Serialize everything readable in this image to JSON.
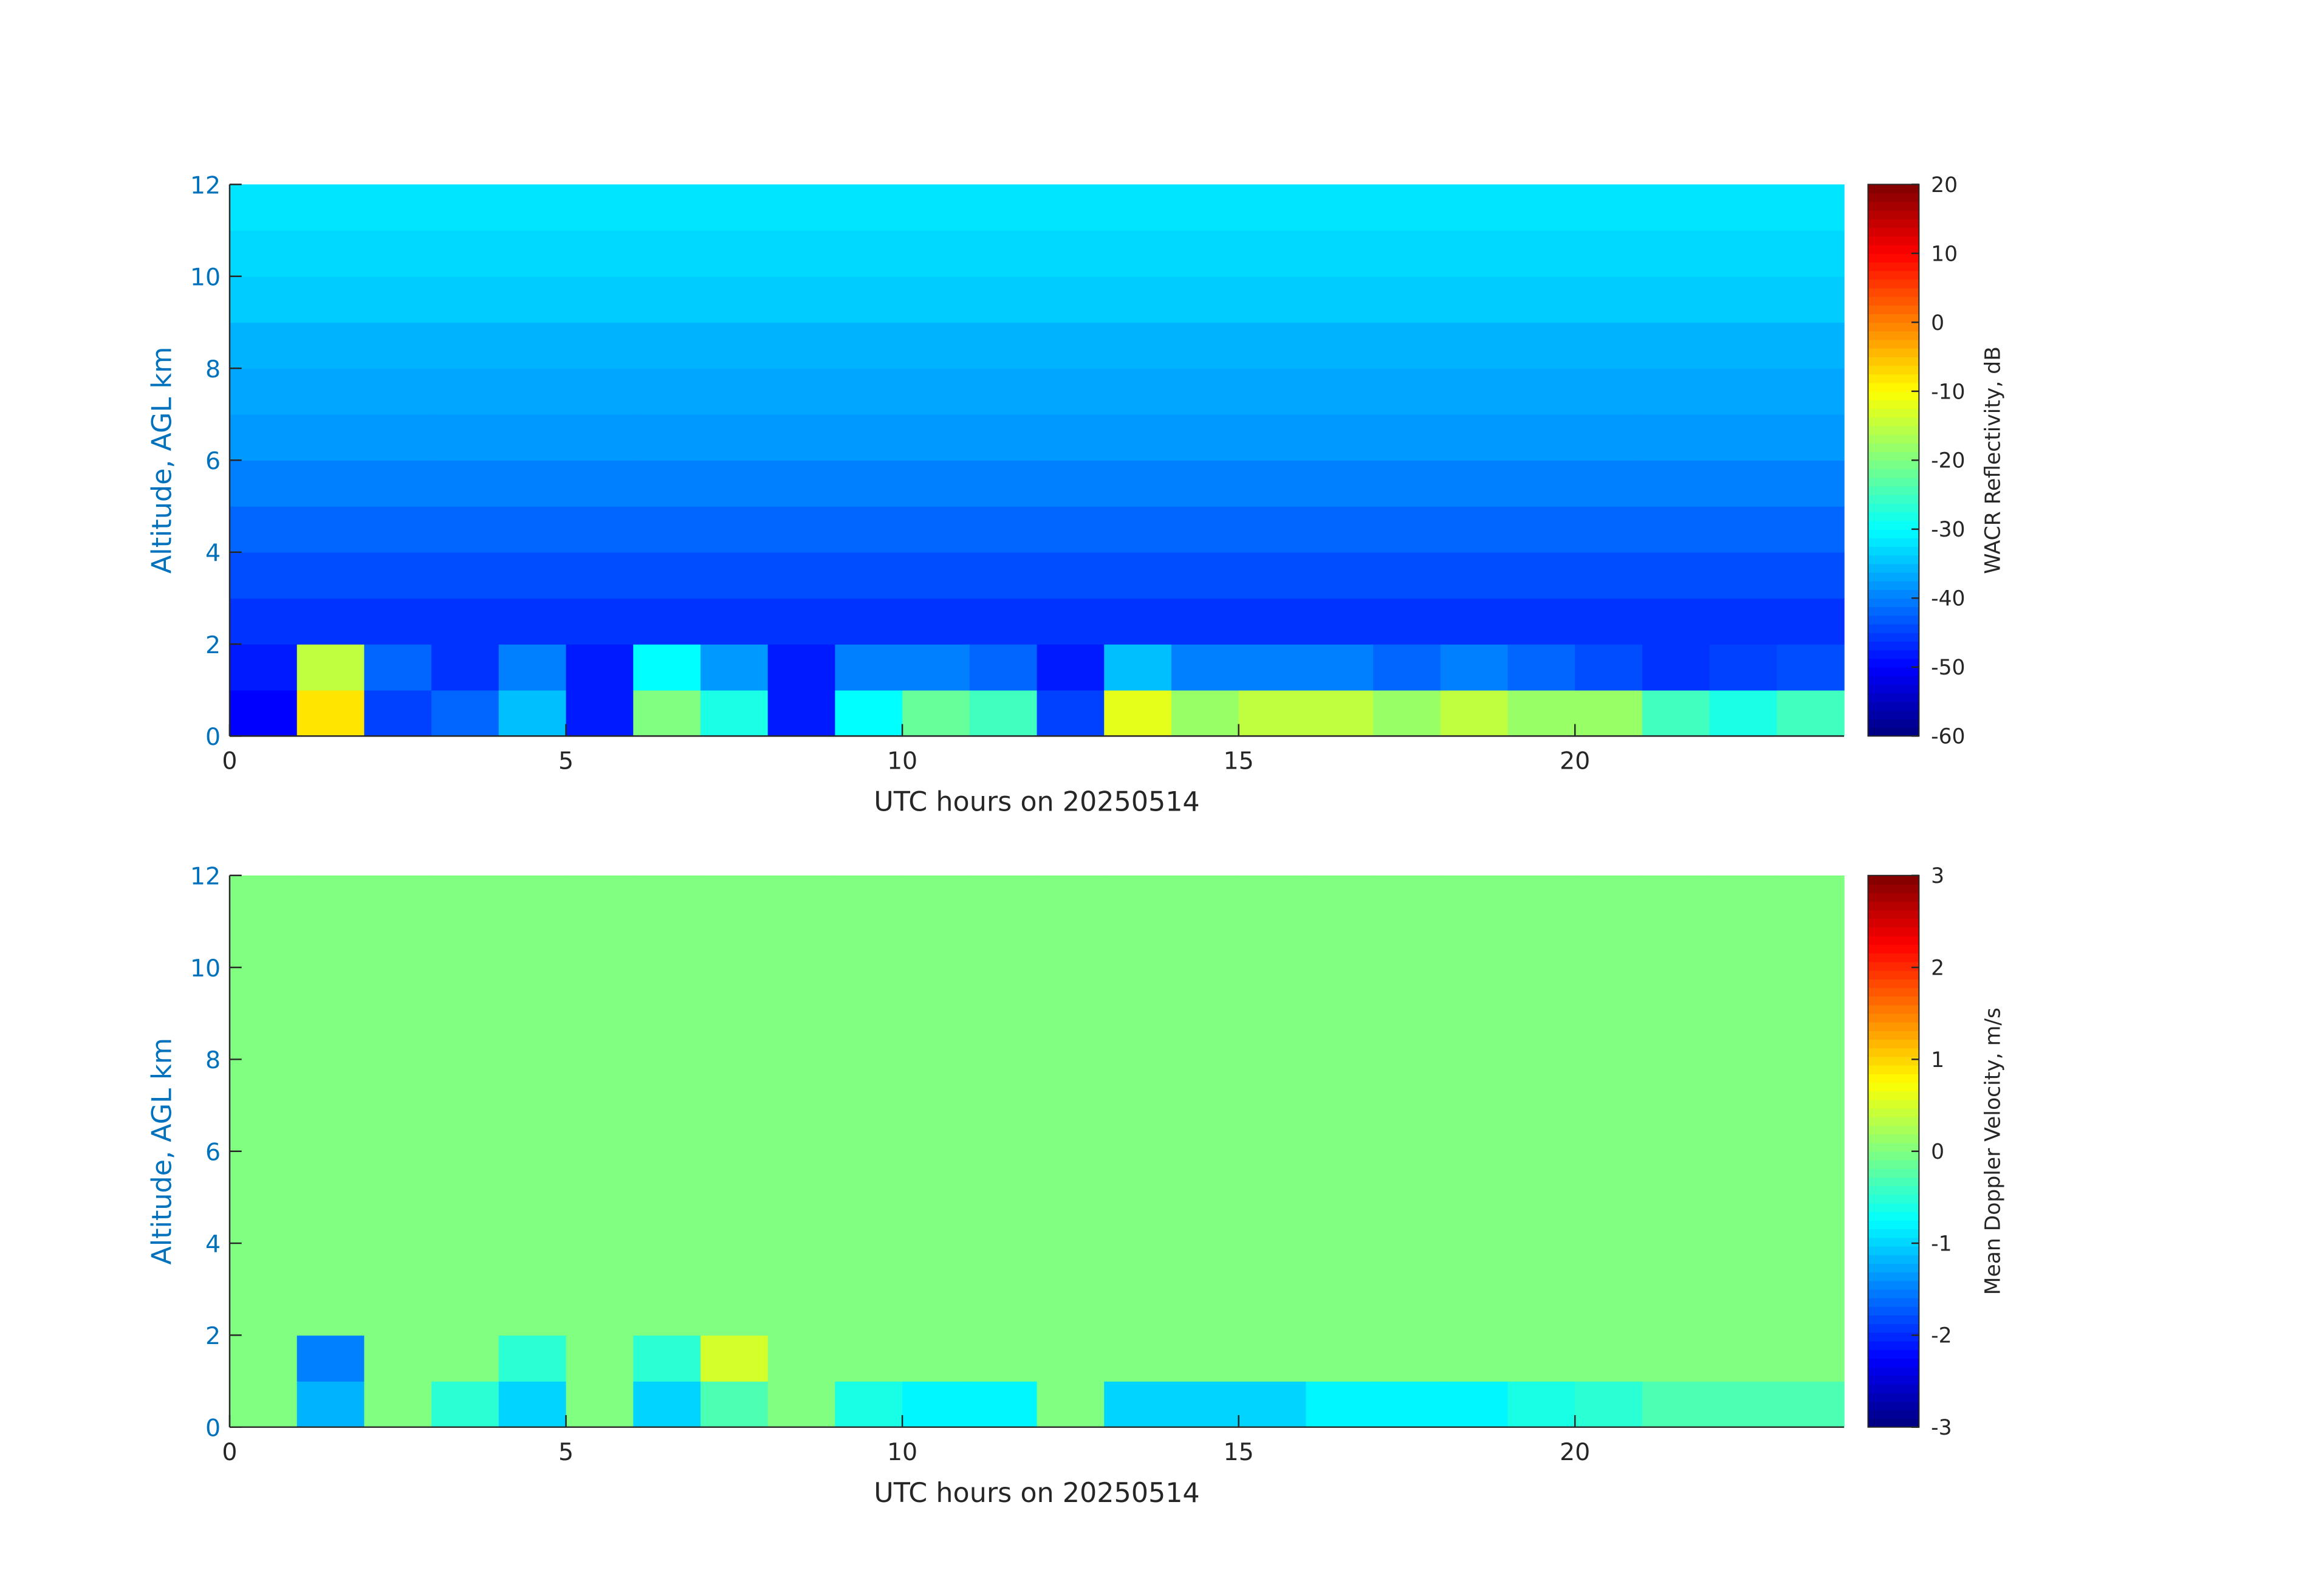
{
  "chart_data": [
    {
      "type": "heatmap",
      "colormap": "jet",
      "x_edges": [
        0,
        1,
        2,
        3,
        4,
        5,
        6,
        7,
        8,
        9,
        10,
        11,
        12,
        13,
        14,
        15,
        16,
        17,
        18,
        19,
        20,
        21,
        22,
        23,
        24
      ],
      "y_edges": [
        0,
        1,
        2,
        3,
        4,
        5,
        6,
        7,
        8,
        9,
        10,
        11,
        12
      ],
      "values": [
        [
          -50,
          -8,
          -45,
          -42,
          -35,
          -48,
          -20,
          -28,
          -48,
          -30,
          -22,
          -25,
          -45,
          -12,
          -18,
          -15,
          -15,
          -18,
          -15,
          -18,
          -18,
          -25,
          -28,
          -25
        ],
        [
          -48,
          -15,
          -42,
          -46,
          -40,
          -48,
          -30,
          -38,
          -48,
          -40,
          -40,
          -42,
          -48,
          -35,
          -40,
          -40,
          -40,
          -42,
          -40,
          -42,
          -44,
          -46,
          -45,
          -44
        ],
        [
          -46,
          -46,
          -46,
          -46,
          -46,
          -46,
          -46,
          -46,
          -46,
          -46,
          -46,
          -46,
          -46,
          -46,
          -46,
          -46,
          -46,
          -46,
          -46,
          -46,
          -46,
          -46,
          -46,
          -46
        ],
        [
          -44,
          -44,
          -44,
          -44,
          -44,
          -44,
          -44,
          -44,
          -44,
          -44,
          -44,
          -44,
          -44,
          -44,
          -44,
          -44,
          -44,
          -44,
          -44,
          -44,
          -44,
          -44,
          -44,
          -44
        ],
        [
          -42,
          -42,
          -42,
          -42,
          -42,
          -42,
          -42,
          -42,
          -42,
          -42,
          -42,
          -42,
          -42,
          -42,
          -42,
          -42,
          -42,
          -42,
          -42,
          -42,
          -42,
          -42,
          -42,
          -42
        ],
        [
          -40,
          -40,
          -40,
          -40,
          -40,
          -40,
          -40,
          -40,
          -40,
          -40,
          -40,
          -40,
          -40,
          -40,
          -40,
          -40,
          -40,
          -40,
          -40,
          -40,
          -40,
          -40,
          -40,
          -40
        ],
        [
          -38,
          -38,
          -38,
          -38,
          -38,
          -38,
          -38,
          -38,
          -38,
          -38,
          -38,
          -38,
          -38,
          -38,
          -38,
          -38,
          -38,
          -38,
          -38,
          -38,
          -38,
          -38,
          -38,
          -38
        ],
        [
          -37,
          -37,
          -37,
          -37,
          -37,
          -37,
          -37,
          -37,
          -37,
          -37,
          -37,
          -37,
          -37,
          -37,
          -37,
          -37,
          -37,
          -37,
          -37,
          -37,
          -37,
          -37,
          -37,
          -37
        ],
        [
          -36,
          -36,
          -36,
          -36,
          -36,
          -36,
          -36,
          -36,
          -36,
          -36,
          -36,
          -36,
          -36,
          -36,
          -36,
          -36,
          -36,
          -36,
          -36,
          -36,
          -36,
          -36,
          -36,
          -36
        ],
        [
          -34,
          -34,
          -34,
          -34,
          -34,
          -34,
          -34,
          -34,
          -34,
          -34,
          -34,
          -34,
          -34,
          -34,
          -34,
          -34,
          -34,
          -34,
          -34,
          -34,
          -34,
          -34,
          -34,
          -34
        ],
        [
          -33,
          -33,
          -33,
          -33,
          -33,
          -33,
          -33,
          -33,
          -33,
          -33,
          -33,
          -33,
          -33,
          -33,
          -33,
          -33,
          -33,
          -33,
          -33,
          -33,
          -33,
          -33,
          -33,
          -33
        ],
        [
          -32,
          -32,
          -32,
          -32,
          -32,
          -32,
          -32,
          -32,
          -32,
          -32,
          -32,
          -32,
          -32,
          -32,
          -32,
          -32,
          -32,
          -32,
          -32,
          -32,
          -32,
          -32,
          -32,
          -32
        ]
      ],
      "xlim": [
        0,
        24
      ],
      "ylim": [
        0,
        12
      ],
      "xticks": [
        0,
        5,
        10,
        15,
        20
      ],
      "yticks": [
        0,
        2,
        4,
        6,
        8,
        10,
        12
      ],
      "xlabel": "UTC hours on 20250514",
      "ylabel": "Altitude, AGL km",
      "colorbar_label": "WACR Reflectivity, dB",
      "clim": [
        -60,
        20
      ],
      "cticks": [
        -60,
        -50,
        -40,
        -30,
        -20,
        -10,
        0,
        10,
        20
      ]
    },
    {
      "type": "heatmap",
      "colormap": "jet",
      "x_edges": [
        0,
        1,
        2,
        3,
        4,
        5,
        6,
        7,
        8,
        9,
        10,
        11,
        12,
        13,
        14,
        15,
        16,
        17,
        18,
        19,
        20,
        21,
        22,
        23,
        24
      ],
      "y_edges": [
        0,
        1,
        2,
        3,
        4,
        5,
        6,
        7,
        8,
        9,
        10,
        11,
        12
      ],
      "values": [
        [
          0,
          -1.2,
          0,
          -0.5,
          -1,
          0,
          -1,
          -0.3,
          0,
          -0.6,
          -0.8,
          -0.8,
          0,
          -1,
          -1,
          -1,
          -0.8,
          -0.8,
          -0.8,
          -0.6,
          -0.5,
          -0.3,
          -0.3,
          -0.3
        ],
        [
          0,
          -1.5,
          0,
          0,
          -0.5,
          0,
          -0.5,
          0.5,
          0,
          0,
          0,
          0,
          0,
          0,
          0,
          0,
          0,
          0,
          0,
          0,
          0,
          0,
          0,
          0
        ],
        [
          0,
          0,
          0,
          0,
          0,
          0,
          0,
          0,
          0,
          0,
          0,
          0,
          0,
          0,
          0,
          0,
          0,
          0,
          0,
          0,
          0,
          0,
          0,
          0
        ],
        [
          0,
          0,
          0,
          0,
          0,
          0,
          0,
          0,
          0,
          0,
          0,
          0,
          0,
          0,
          0,
          0,
          0,
          0,
          0,
          0,
          0,
          0,
          0,
          0
        ],
        [
          0,
          0,
          0,
          0,
          0,
          0,
          0,
          0,
          0,
          0,
          0,
          0,
          0,
          0,
          0,
          0,
          0,
          0,
          0,
          0,
          0,
          0,
          0,
          0
        ],
        [
          0,
          0,
          0,
          0,
          0,
          0,
          0,
          0,
          0,
          0,
          0,
          0,
          0,
          0,
          0,
          0,
          0,
          0,
          0,
          0,
          0,
          0,
          0,
          0
        ],
        [
          0,
          0,
          0,
          0,
          0,
          0,
          0,
          0,
          0,
          0,
          0,
          0,
          0,
          0,
          0,
          0,
          0,
          0,
          0,
          0,
          0,
          0,
          0,
          0
        ],
        [
          0,
          0,
          0,
          0,
          0,
          0,
          0,
          0,
          0,
          0,
          0,
          0,
          0,
          0,
          0,
          0,
          0,
          0,
          0,
          0,
          0,
          0,
          0,
          0
        ],
        [
          0,
          0,
          0,
          0,
          0,
          0,
          0,
          0,
          0,
          0,
          0,
          0,
          0,
          0,
          0,
          0,
          0,
          0,
          0,
          0,
          0,
          0,
          0,
          0
        ],
        [
          0,
          0,
          0,
          0,
          0,
          0,
          0,
          0,
          0,
          0,
          0,
          0,
          0,
          0,
          0,
          0,
          0,
          0,
          0,
          0,
          0,
          0,
          0,
          0
        ],
        [
          0,
          0,
          0,
          0,
          0,
          0,
          0,
          0,
          0,
          0,
          0,
          0,
          0,
          0,
          0,
          0,
          0,
          0,
          0,
          0,
          0,
          0,
          0,
          0
        ],
        [
          0,
          0,
          0,
          0,
          0,
          0,
          0,
          0,
          0,
          0,
          0,
          0,
          0,
          0,
          0,
          0,
          0,
          0,
          0,
          0,
          0,
          0,
          0,
          0
        ]
      ],
      "xlim": [
        0,
        24
      ],
      "ylim": [
        0,
        12
      ],
      "xticks": [
        0,
        5,
        10,
        15,
        20
      ],
      "yticks": [
        0,
        2,
        4,
        6,
        8,
        10,
        12
      ],
      "xlabel": "UTC hours on 20250514",
      "ylabel": "Altitude, AGL km",
      "colorbar_label": "Mean Doppler Velocity, m/s",
      "clim": [
        -3,
        3
      ],
      "cticks": [
        -3,
        -2,
        -1,
        0,
        1,
        2,
        3
      ]
    }
  ]
}
